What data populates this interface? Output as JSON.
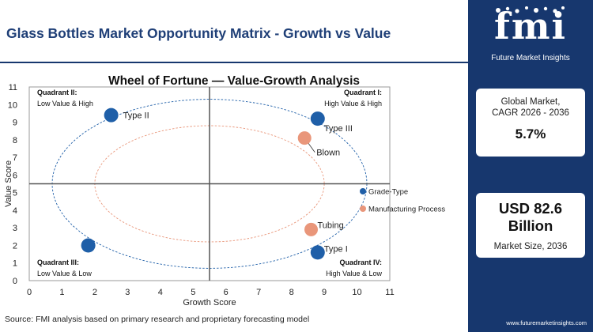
{
  "header": {
    "title": "Glass Bottles Market Opportunity Matrix - Growth vs Value"
  },
  "footer": {
    "source": "Source: FMI analysis based on primary research and proprietary forecasting model"
  },
  "sidebar": {
    "logo_text": "fmi",
    "logo_tagline": "Future Market Insights",
    "cagr_label_1": "Global Market,",
    "cagr_label_2": "CAGR 2026 - 2036",
    "cagr_value": "5.7%",
    "size_value_1": "USD 82.6",
    "size_value_2": "Billion",
    "size_label": "Market Size, 2036",
    "url": "www.futuremarketinsights.com",
    "colors": {
      "background": "#17376e",
      "card": "#ffffff"
    }
  },
  "chart_data": {
    "type": "scatter",
    "title": "Wheel of Fortune — Value-Growth Analysis",
    "xlabel": "Growth Score",
    "ylabel": "Value Score",
    "xlim": [
      0,
      11
    ],
    "ylim": [
      0,
      11
    ],
    "x_ticks": [
      0,
      1,
      2,
      3,
      4,
      5,
      6,
      7,
      8,
      9,
      10,
      11
    ],
    "y_ticks": [
      0,
      1,
      2,
      3,
      4,
      5,
      6,
      7,
      8,
      9,
      10,
      11
    ],
    "divider_x": 5.5,
    "divider_y": 5.5,
    "quadrants": [
      {
        "name": "Quadrant II:",
        "desc": "Low Value & High",
        "position": "top-left"
      },
      {
        "name": "Quadrant I:",
        "desc": "High Value & High",
        "position": "top-right"
      },
      {
        "name": "Quadrant III:",
        "desc": "Low Value & Low",
        "position": "bottom-left"
      },
      {
        "name": "Quadrant IV:",
        "desc": "High Value & Low",
        "position": "bottom-right"
      }
    ],
    "series": [
      {
        "name": "Grade-Type",
        "color": "#1f5fa8",
        "points": [
          {
            "label": "Type II",
            "x": 2.5,
            "y": 9.4
          },
          {
            "label": "Type III",
            "x": 8.8,
            "y": 9.2
          },
          {
            "label": "Type I",
            "x": 8.8,
            "y": 1.6
          },
          {
            "label": "",
            "x": 1.8,
            "y": 2.0
          }
        ]
      },
      {
        "name": "Manufacturing Process",
        "color": "#e9967a",
        "points": [
          {
            "label": "Blown",
            "x": 8.4,
            "y": 8.1
          },
          {
            "label": "Tubing",
            "x": 8.6,
            "y": 2.9
          }
        ]
      }
    ],
    "legend_position": "right",
    "grid": false
  }
}
